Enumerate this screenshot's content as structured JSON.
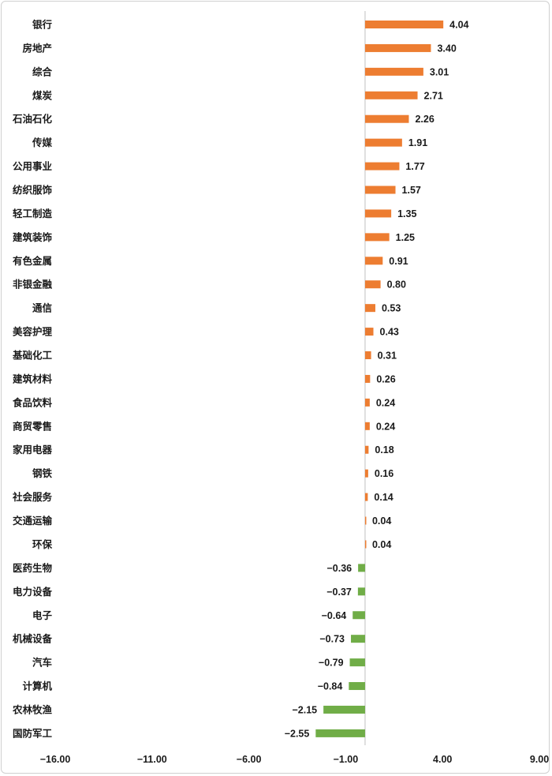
{
  "chart_data": {
    "type": "bar",
    "orientation": "horizontal",
    "categories": [
      "银行",
      "房地产",
      "综合",
      "煤炭",
      "石油石化",
      "传媒",
      "公用事业",
      "纺织服饰",
      "轻工制造",
      "建筑装饰",
      "有色金属",
      "非银金融",
      "通信",
      "美容护理",
      "基础化工",
      "建筑材料",
      "食品饮料",
      "商贸零售",
      "家用电器",
      "钢铁",
      "社会服务",
      "交通运输",
      "环保",
      "医药生物",
      "电力设备",
      "电子",
      "机械设备",
      "汽车",
      "计算机",
      "农林牧渔",
      "国防军工"
    ],
    "values": [
      4.04,
      3.4,
      3.01,
      2.71,
      2.26,
      1.91,
      1.77,
      1.57,
      1.35,
      1.25,
      0.91,
      0.8,
      0.53,
      0.43,
      0.31,
      0.26,
      0.24,
      0.24,
      0.18,
      0.16,
      0.14,
      0.04,
      0.04,
      -0.36,
      -0.37,
      -0.64,
      -0.73,
      -0.79,
      -0.84,
      -2.15,
      -2.55
    ],
    "value_labels": [
      "4.04",
      "3.40",
      "3.01",
      "2.71",
      "2.26",
      "1.91",
      "1.77",
      "1.57",
      "1.35",
      "1.25",
      "0.91",
      "0.80",
      "0.53",
      "0.43",
      "0.31",
      "0.26",
      "0.24",
      "0.24",
      "0.18",
      "0.16",
      "0.14",
      "0.04",
      "0.04",
      "−0.36",
      "−0.37",
      "−0.64",
      "−0.73",
      "−0.79",
      "−0.84",
      "−2.15",
      "−2.55"
    ],
    "xlim": [
      -16,
      9
    ],
    "xticks": [
      -16,
      -11,
      -6,
      -1,
      4,
      9
    ],
    "xtick_labels": [
      "−16.00",
      "−11.00",
      "−6.00",
      "−1.00",
      "4.00",
      "9.00"
    ],
    "title": "",
    "xlabel": "",
    "ylabel": "",
    "grid": false,
    "colors": {
      "positive": "#ED7D31",
      "negative": "#70AD47",
      "axis": "#c0c0c0"
    }
  }
}
